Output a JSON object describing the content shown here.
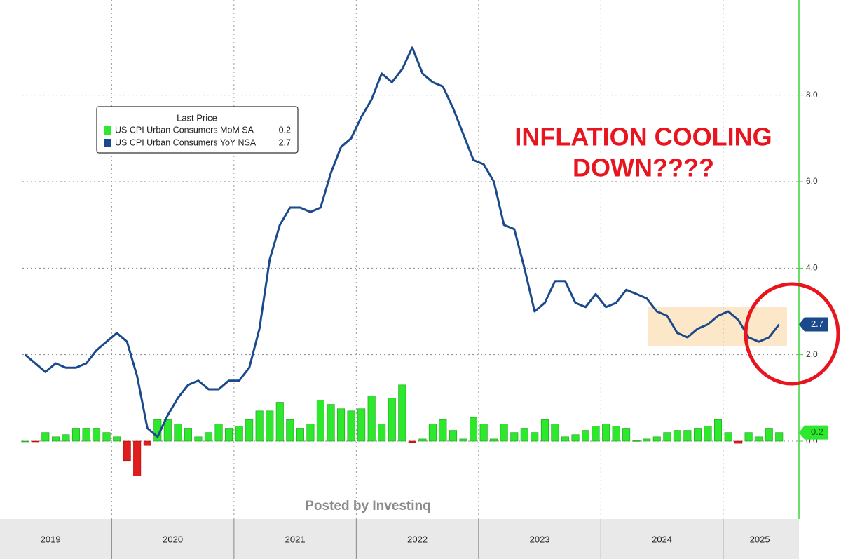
{
  "chart_data": {
    "type": "bar_line",
    "legend_title": "Last Price",
    "annotation": [
      "INFLATION COOLING",
      "DOWN????"
    ],
    "watermark": "Posted by Investinq",
    "x": [
      2019.292,
      2019.375,
      2019.458,
      2019.542,
      2019.625,
      2019.708,
      2019.792,
      2019.875,
      2019.958,
      2020.042,
      2020.125,
      2020.208,
      2020.292,
      2020.375,
      2020.458,
      2020.542,
      2020.625,
      2020.708,
      2020.792,
      2020.875,
      2020.958,
      2021.042,
      2021.125,
      2021.208,
      2021.292,
      2021.375,
      2021.458,
      2021.542,
      2021.625,
      2021.708,
      2021.792,
      2021.875,
      2021.958,
      2022.042,
      2022.125,
      2022.208,
      2022.292,
      2022.375,
      2022.458,
      2022.542,
      2022.625,
      2022.708,
      2022.792,
      2022.875,
      2022.958,
      2023.042,
      2023.125,
      2023.208,
      2023.292,
      2023.375,
      2023.458,
      2023.542,
      2023.625,
      2023.708,
      2023.792,
      2023.875,
      2023.958,
      2024.042,
      2024.125,
      2024.208,
      2024.292,
      2024.375,
      2024.458,
      2024.542,
      2024.625,
      2024.708,
      2024.792,
      2024.875,
      2024.958,
      2025.042,
      2025.125,
      2025.208,
      2025.292,
      2025.375,
      2025.458
    ],
    "series": [
      {
        "name": "US CPI Urban Consumers MoM SA",
        "kind": "bar",
        "color": "#2ee82e",
        "negative_color": "#e01e1e",
        "last_label": "0.2",
        "values": [
          0.0,
          -0.01,
          0.2,
          0.1,
          0.15,
          0.3,
          0.3,
          0.3,
          0.2,
          0.1,
          -0.45,
          -0.8,
          -0.1,
          0.5,
          0.5,
          0.4,
          0.3,
          0.1,
          0.2,
          0.4,
          0.3,
          0.35,
          0.5,
          0.7,
          0.7,
          0.9,
          0.5,
          0.3,
          0.4,
          0.95,
          0.85,
          0.75,
          0.7,
          0.75,
          1.05,
          0.4,
          1.0,
          1.3,
          -0.03,
          0.05,
          0.4,
          0.5,
          0.25,
          0.05,
          0.55,
          0.4,
          0.05,
          0.4,
          0.2,
          0.3,
          0.2,
          0.5,
          0.4,
          0.1,
          0.15,
          0.25,
          0.35,
          0.4,
          0.35,
          0.3,
          0.01,
          0.05,
          0.1,
          0.2,
          0.25,
          0.25,
          0.3,
          0.35,
          0.5,
          0.2,
          -0.05,
          0.2,
          0.1,
          0.3,
          0.2
        ]
      },
      {
        "name": "US CPI Urban Consumers YoY NSA",
        "kind": "line",
        "color": "#1a4a8a",
        "last_label": "2.7",
        "values": [
          2.0,
          1.8,
          1.6,
          1.8,
          1.7,
          1.7,
          1.8,
          2.1,
          2.3,
          2.5,
          2.3,
          1.5,
          0.3,
          0.1,
          0.6,
          1.0,
          1.3,
          1.4,
          1.2,
          1.2,
          1.4,
          1.4,
          1.7,
          2.6,
          4.2,
          5.0,
          5.4,
          5.4,
          5.3,
          5.4,
          6.2,
          6.8,
          7.0,
          7.5,
          7.9,
          8.5,
          8.3,
          8.6,
          9.1,
          8.5,
          8.3,
          8.2,
          7.7,
          7.1,
          6.5,
          6.4,
          6.0,
          5.0,
          4.9,
          4.0,
          3.0,
          3.2,
          3.7,
          3.7,
          3.2,
          3.1,
          3.4,
          3.1,
          3.2,
          3.5,
          3.4,
          3.3,
          3.0,
          2.9,
          2.5,
          2.4,
          2.6,
          2.7,
          2.9,
          3.0,
          2.8,
          2.4,
          2.3,
          2.4,
          2.7
        ]
      }
    ],
    "xlim": [
      2019.27,
      2025.62
    ],
    "xticks": [
      2020,
      2021,
      2022,
      2023,
      2024,
      2025
    ],
    "xtick_labels": [
      {
        "value": 2019.5,
        "label": "2019"
      },
      {
        "value": 2020.5,
        "label": "2020"
      },
      {
        "value": 2021.5,
        "label": "2021"
      },
      {
        "value": 2022.5,
        "label": "2022"
      },
      {
        "value": 2023.5,
        "label": "2023"
      },
      {
        "value": 2024.5,
        "label": "2024"
      },
      {
        "value": 2025.3,
        "label": "2025"
      }
    ],
    "ylim": [
      -1.8,
      10.2
    ],
    "yticks": [
      {
        "value": 0,
        "label": "0.0"
      },
      {
        "value": 2,
        "label": "2.0"
      },
      {
        "value": 4,
        "label": "4.0"
      },
      {
        "value": 6,
        "label": "6.0"
      },
      {
        "value": 8,
        "label": "8.0"
      }
    ],
    "grid": true
  }
}
